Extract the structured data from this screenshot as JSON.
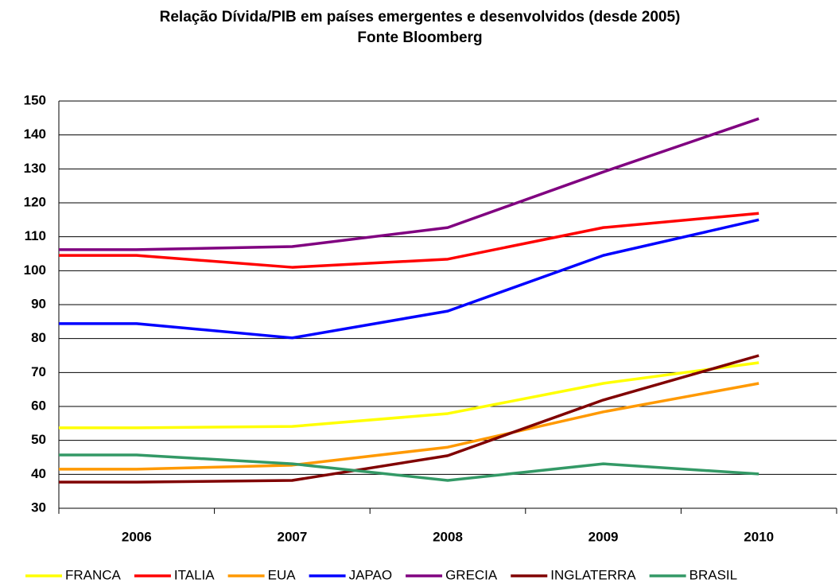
{
  "chart_data": {
    "type": "line",
    "title": "Relação Dívida/PIB em países emergentes e desenvolvidos (desde 2005)",
    "subtitle": "Fonte Bloomberg",
    "categories": [
      null,
      "2006",
      "2007",
      "2008",
      "2009",
      "2010"
    ],
    "series": [
      {
        "name": "FRANCA",
        "color": "#ffff00",
        "values": [
          53.7,
          53.7,
          54.1,
          57.9,
          66.8,
          72.9
        ]
      },
      {
        "name": "ITALIA",
        "color": "#ff0000",
        "values": [
          104.5,
          104.5,
          101.0,
          103.4,
          112.7,
          116.9
        ]
      },
      {
        "name": "EUA",
        "color": "#ff9900",
        "values": [
          41.5,
          41.5,
          42.7,
          48.0,
          58.4,
          66.8
        ]
      },
      {
        "name": "JAPAO",
        "color": "#0000ff",
        "values": [
          84.4,
          84.4,
          80.2,
          88.1,
          104.5,
          115.0
        ]
      },
      {
        "name": "GRECIA",
        "color": "#800080",
        "values": [
          106.2,
          106.2,
          107.1,
          112.7,
          129.1,
          144.8
        ]
      },
      {
        "name": "INGLATERRA",
        "color": "#800000",
        "values": [
          37.7,
          37.7,
          38.2,
          45.5,
          61.9,
          75.0
        ]
      },
      {
        "name": "BRASIL",
        "color": "#339966",
        "values": [
          45.7,
          45.7,
          43.1,
          38.2,
          43.1,
          40.1
        ]
      }
    ],
    "ylim": [
      30,
      150
    ],
    "yticks": [
      30,
      40,
      50,
      60,
      70,
      80,
      90,
      100,
      110,
      120,
      130,
      140,
      150
    ],
    "grid": true
  }
}
